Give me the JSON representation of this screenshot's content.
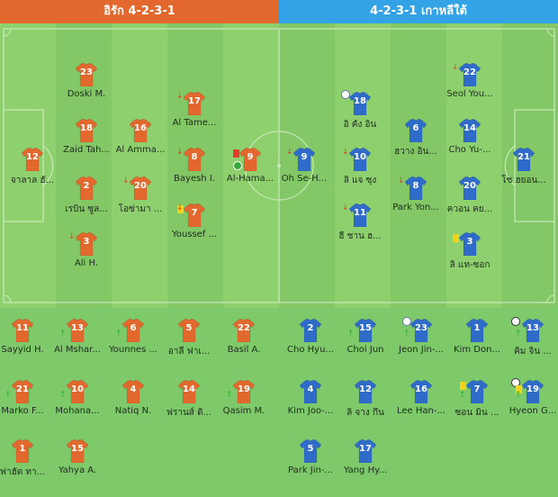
{
  "header": {
    "home_title": "อิรัก 4-2-3-1",
    "away_title": "4-2-3-1 เกาหลีใต้"
  },
  "colors": {
    "home": "#e2682e",
    "away": "#2f6cc9",
    "pitch": "#7ec96a"
  },
  "pitch_home": [
    {
      "num": "12",
      "name": "จาลาล ฮั..."
    },
    {
      "num": "23",
      "name": "Doski M."
    },
    {
      "num": "18",
      "name": "Zaid Tah..."
    },
    {
      "num": "2",
      "name": "เรบิน ซูล..."
    },
    {
      "num": "3",
      "name": "Ali H.",
      "icons": [
        "sub-out"
      ]
    },
    {
      "num": "16",
      "name": "Al Amma..."
    },
    {
      "num": "20",
      "name": "โอซ่ามา ...",
      "icons": [
        "sub-out"
      ]
    },
    {
      "num": "17",
      "name": "Al Tame...",
      "icons": [
        "sub-out"
      ]
    },
    {
      "num": "8",
      "name": "Bayesh I.",
      "icons": [
        "sub-out"
      ]
    },
    {
      "num": "7",
      "name": "Youssef ...",
      "icons": [
        "yellow",
        "sub-out"
      ]
    },
    {
      "num": "9",
      "name": "Al-Hama...",
      "icons": [
        "red",
        "sb"
      ]
    }
  ],
  "pitch_away": [
    {
      "num": "9",
      "name": "Oh Se-H...",
      "icons": [
        "sub-out"
      ]
    },
    {
      "num": "18",
      "name": "อิ คัง อิน",
      "icons": [
        "captain"
      ]
    },
    {
      "num": "10",
      "name": "ลิ แจ ซุง",
      "icons": [
        "sub-out"
      ]
    },
    {
      "num": "11",
      "name": "ฮี ชาน ฮ...",
      "icons": [
        "sub-out"
      ]
    },
    {
      "num": "6",
      "name": "ฮวาง อิน..."
    },
    {
      "num": "8",
      "name": "Park Yon...",
      "icons": [
        "sub-out"
      ]
    },
    {
      "num": "22",
      "name": "Seol You...",
      "icons": [
        "sub-out"
      ]
    },
    {
      "num": "14",
      "name": "Cho Yu-..."
    },
    {
      "num": "20",
      "name": "ควอน คย..."
    },
    {
      "num": "3",
      "name": "ลิ แท-ซอก",
      "icons": [
        "yellow"
      ]
    },
    {
      "num": "21",
      "name": "โช ฮยอน..."
    }
  ],
  "bench_home": [
    {
      "num": "11",
      "name": "Sayyid H."
    },
    {
      "num": "13",
      "name": "Al Mshar...",
      "icons": [
        "sub-in"
      ]
    },
    {
      "num": "6",
      "name": "Younnes ...",
      "icons": [
        "sub-in"
      ]
    },
    {
      "num": "5",
      "name": "อาลี ฟาเ..."
    },
    {
      "num": "22",
      "name": "Basil A."
    },
    {
      "num": "21",
      "name": "Marko F...",
      "icons": [
        "sub-in"
      ]
    },
    {
      "num": "10",
      "name": "Mohana...",
      "icons": [
        "sub-in"
      ]
    },
    {
      "num": "4",
      "name": "Natiq N."
    },
    {
      "num": "14",
      "name": "ฟรานส์ ดิ..."
    },
    {
      "num": "19",
      "name": "Qasim M.",
      "icons": [
        "sub-in"
      ]
    },
    {
      "num": "1",
      "name": "ฟาฮัด ทา..."
    },
    {
      "num": "15",
      "name": "Yahya A."
    }
  ],
  "bench_away": [
    {
      "num": "2",
      "name": "Cho Hyu..."
    },
    {
      "num": "15",
      "name": "Choi Jun",
      "icons": [
        "sub-in"
      ]
    },
    {
      "num": "23",
      "name": "Jeon Jin-...",
      "icons": [
        "captain",
        "sub-in"
      ]
    },
    {
      "num": "1",
      "name": "Kim Don..."
    },
    {
      "num": "13",
      "name": "คิม จิน ...",
      "icons": [
        "ball",
        "sub-in"
      ]
    },
    {
      "num": "4",
      "name": "Kim Joo-..."
    },
    {
      "num": "12",
      "name": "ลิ จาง กึน"
    },
    {
      "num": "16",
      "name": "Lee Han-..."
    },
    {
      "num": "7",
      "name": "ซอน มิน ...",
      "icons": [
        "yellow",
        "sub-in"
      ]
    },
    {
      "num": "19",
      "name": "Hyeon G...",
      "icons": [
        "ball",
        "yellow",
        "sub-in"
      ]
    },
    {
      "num": "5",
      "name": "Park Jin-..."
    },
    {
      "num": "17",
      "name": "Yang Hy..."
    }
  ]
}
